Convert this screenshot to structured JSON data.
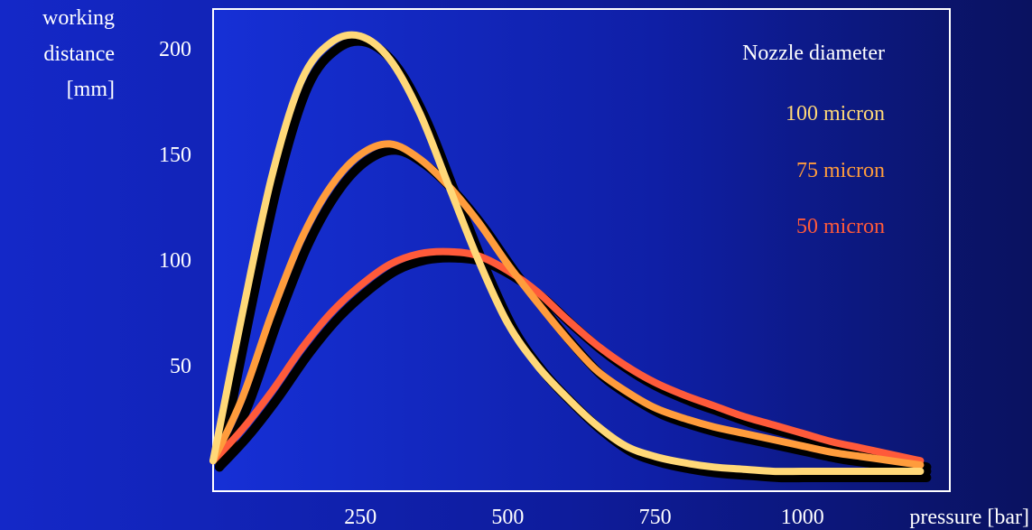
{
  "chart_data": {
    "type": "line",
    "ylabel_lines": [
      "working",
      "distance",
      "[mm]"
    ],
    "xlabel": "pressure [bar]",
    "x_ticks": [
      250,
      500,
      750,
      1000
    ],
    "y_ticks": [
      50,
      100,
      150,
      200
    ],
    "xlim": [
      0,
      1250
    ],
    "ylim": [
      0,
      212
    ],
    "grid": false,
    "legend_title": "Nozzle diameter",
    "legend_position": "top-right",
    "series": [
      {
        "name": "100 micron",
        "color": "#ffd878",
        "x": [
          0,
          50,
          100,
          150,
          200,
          250,
          300,
          350,
          400,
          450,
          500,
          550,
          600,
          650,
          700,
          750,
          800,
          850,
          900,
          950,
          1000,
          1050,
          1100,
          1150,
          1200
        ],
        "y": [
          5,
          75,
          140,
          185,
          203,
          206,
          195,
          170,
          135,
          100,
          70,
          50,
          35,
          22,
          12,
          7,
          4,
          2,
          1,
          0,
          0,
          0,
          0,
          0,
          0
        ]
      },
      {
        "name": "75 micron",
        "color": "#ff9c3c",
        "x": [
          0,
          50,
          100,
          150,
          200,
          250,
          300,
          350,
          400,
          450,
          500,
          550,
          600,
          650,
          700,
          750,
          800,
          850,
          900,
          950,
          1000,
          1050,
          1100,
          1150,
          1200
        ],
        "y": [
          5,
          35,
          75,
          110,
          135,
          150,
          155,
          148,
          135,
          118,
          98,
          80,
          63,
          48,
          38,
          30,
          25,
          21,
          18,
          15,
          12,
          9,
          7,
          5,
          3
        ]
      },
      {
        "name": "50 micron",
        "color": "#ff5a3a",
        "x": [
          0,
          50,
          100,
          150,
          200,
          250,
          300,
          350,
          400,
          450,
          500,
          550,
          600,
          650,
          700,
          750,
          800,
          850,
          900,
          950,
          1000,
          1050,
          1100,
          1150,
          1200
        ],
        "y": [
          5,
          20,
          38,
          58,
          75,
          88,
          98,
          103,
          104,
          102,
          95,
          85,
          72,
          60,
          50,
          42,
          36,
          31,
          26,
          22,
          18,
          14,
          11,
          8,
          5
        ]
      }
    ]
  }
}
